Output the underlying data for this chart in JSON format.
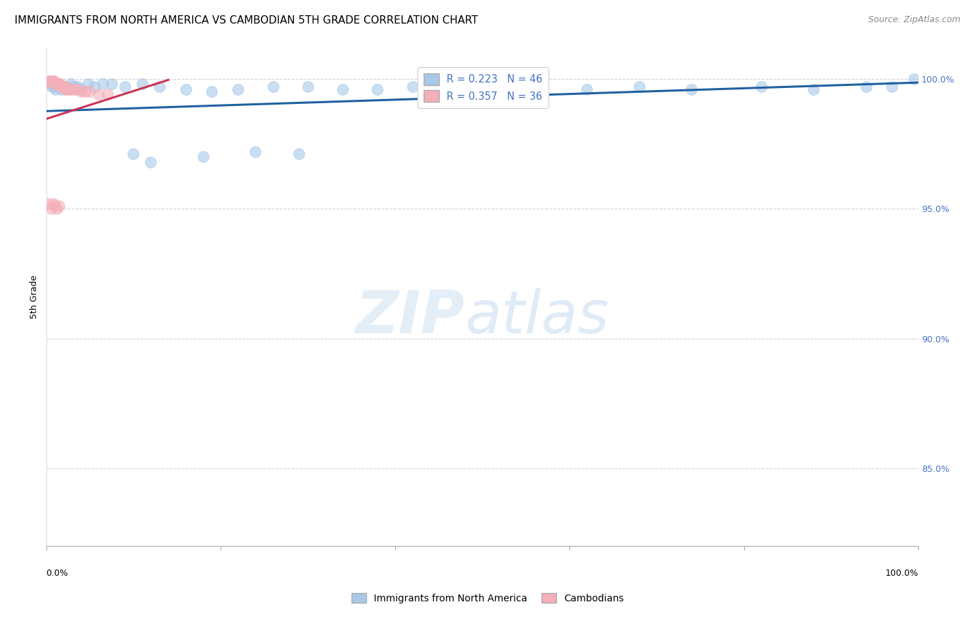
{
  "title": "IMMIGRANTS FROM NORTH AMERICA VS CAMBODIAN 5TH GRADE CORRELATION CHART",
  "source": "Source: ZipAtlas.com",
  "ylabel": "5th Grade",
  "xlim": [
    0.0,
    1.0
  ],
  "ylim": [
    0.82,
    1.012
  ],
  "y_tick_positions": [
    0.85,
    0.9,
    0.95,
    1.0
  ],
  "y_tick_labels": [
    "85.0%",
    "90.0%",
    "95.0%",
    "100.0%"
  ],
  "legend_entry_blue": "R = 0.223   N = 46",
  "legend_entry_pink": "R = 0.357   N = 36",
  "legend_label_blue": "Immigrants from North America",
  "legend_label_pink": "Cambodians",
  "blue_scatter_x": [
    0.003,
    0.005,
    0.007,
    0.009,
    0.011,
    0.013,
    0.015,
    0.017,
    0.019,
    0.022,
    0.025,
    0.028,
    0.032,
    0.036,
    0.04,
    0.048,
    0.055,
    0.065,
    0.075,
    0.09,
    0.11,
    0.13,
    0.16,
    0.19,
    0.22,
    0.26,
    0.3,
    0.34,
    0.38,
    0.42,
    0.1,
    0.12,
    0.18,
    0.24,
    0.29,
    0.44,
    0.5,
    0.56,
    0.62,
    0.68,
    0.74,
    0.82,
    0.88,
    0.94,
    0.97,
    0.995
  ],
  "blue_scatter_y": [
    0.999,
    0.998,
    0.997,
    0.997,
    0.996,
    0.998,
    0.997,
    0.996,
    0.997,
    0.996,
    0.997,
    0.998,
    0.997,
    0.997,
    0.996,
    0.998,
    0.997,
    0.998,
    0.998,
    0.997,
    0.998,
    0.997,
    0.996,
    0.995,
    0.996,
    0.997,
    0.997,
    0.996,
    0.996,
    0.997,
    0.971,
    0.968,
    0.97,
    0.972,
    0.971,
    0.997,
    0.997,
    0.997,
    0.996,
    0.997,
    0.996,
    0.997,
    0.996,
    0.997,
    0.997,
    1.0
  ],
  "pink_scatter_x": [
    0.002,
    0.004,
    0.005,
    0.007,
    0.008,
    0.009,
    0.01,
    0.011,
    0.012,
    0.013,
    0.014,
    0.015,
    0.016,
    0.017,
    0.018,
    0.019,
    0.02,
    0.021,
    0.022,
    0.023,
    0.025,
    0.027,
    0.03,
    0.033,
    0.036,
    0.04,
    0.045,
    0.05,
    0.06,
    0.07,
    0.003,
    0.006,
    0.008,
    0.01,
    0.012,
    0.015
  ],
  "pink_scatter_y": [
    0.999,
    0.999,
    0.999,
    0.999,
    0.999,
    0.999,
    0.998,
    0.998,
    0.998,
    0.998,
    0.998,
    0.998,
    0.998,
    0.997,
    0.997,
    0.997,
    0.997,
    0.997,
    0.997,
    0.996,
    0.996,
    0.996,
    0.996,
    0.996,
    0.996,
    0.995,
    0.995,
    0.995,
    0.994,
    0.994,
    0.952,
    0.95,
    0.952,
    0.951,
    0.95,
    0.951
  ],
  "blue_line_x": [
    0.0,
    1.0
  ],
  "blue_line_y": [
    0.9875,
    0.9985
  ],
  "pink_line_x": [
    0.0,
    0.14
  ],
  "pink_line_y": [
    0.9845,
    0.9995
  ],
  "dot_size": 130,
  "blue_dot_color": "#a8c8e8",
  "pink_dot_color": "#f4b0ba",
  "blue_line_color": "#2060a0",
  "pink_line_color": "#cc3355",
  "grid_color": "#c8c8c8",
  "title_fontsize": 11,
  "axis_label_fontsize": 9,
  "tick_fontsize": 9,
  "right_tick_color": "#4472c4",
  "source_fontsize": 9
}
